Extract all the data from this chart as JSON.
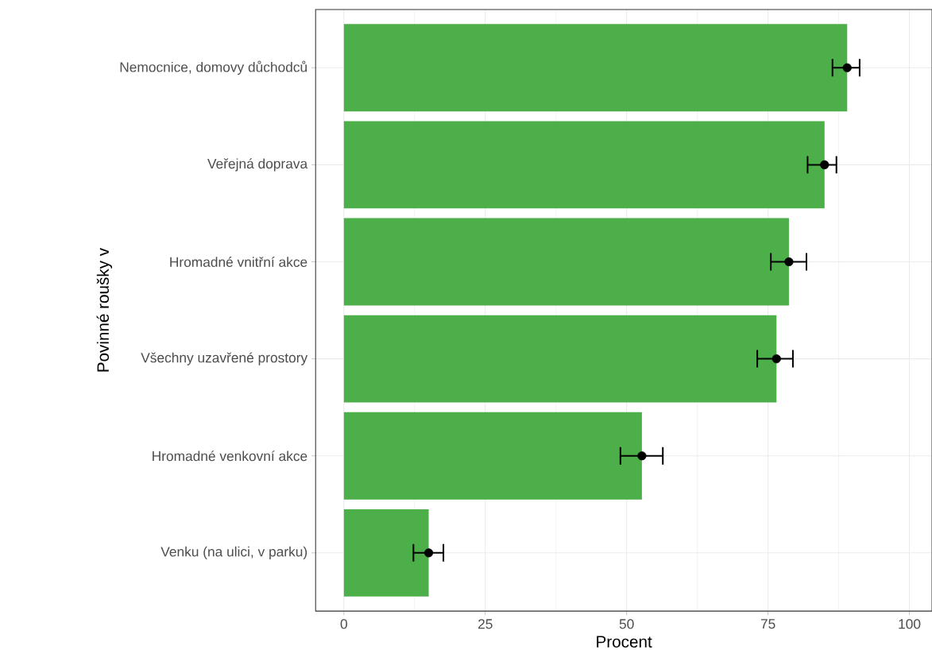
{
  "chart_data": {
    "type": "bar",
    "orientation": "horizontal",
    "xlabel": "Procent",
    "ylabel": "Povinné roušky v",
    "categories": [
      "Nemocnice, domovy důchodců",
      "Veřejná doprava",
      "Hromadné vnitřní akce",
      "Všechny uzavřené prostory",
      "Hromadné venkovní akce",
      "Venku (na ulici, v parku)"
    ],
    "series": [
      {
        "color": "#4daf4a",
        "values": [
          89,
          85,
          78.7,
          76.5,
          52.7,
          15
        ]
      },
      {
        "type": "scatter",
        "color": "#000000",
        "marker": "circle",
        "values": [
          89,
          85,
          78.7,
          76.5,
          52.7,
          15
        ],
        "errors": [
          [
            86.4,
            91.2
          ],
          [
            82,
            87.1
          ],
          [
            75.5,
            81.8
          ],
          [
            73.1,
            79.4
          ],
          [
            48.9,
            56.4
          ],
          [
            12.3,
            17.6
          ]
        ]
      }
    ],
    "xlim": [
      -5,
      104
    ],
    "xticks": [
      0,
      25,
      50,
      75,
      100
    ],
    "grid": true
  }
}
